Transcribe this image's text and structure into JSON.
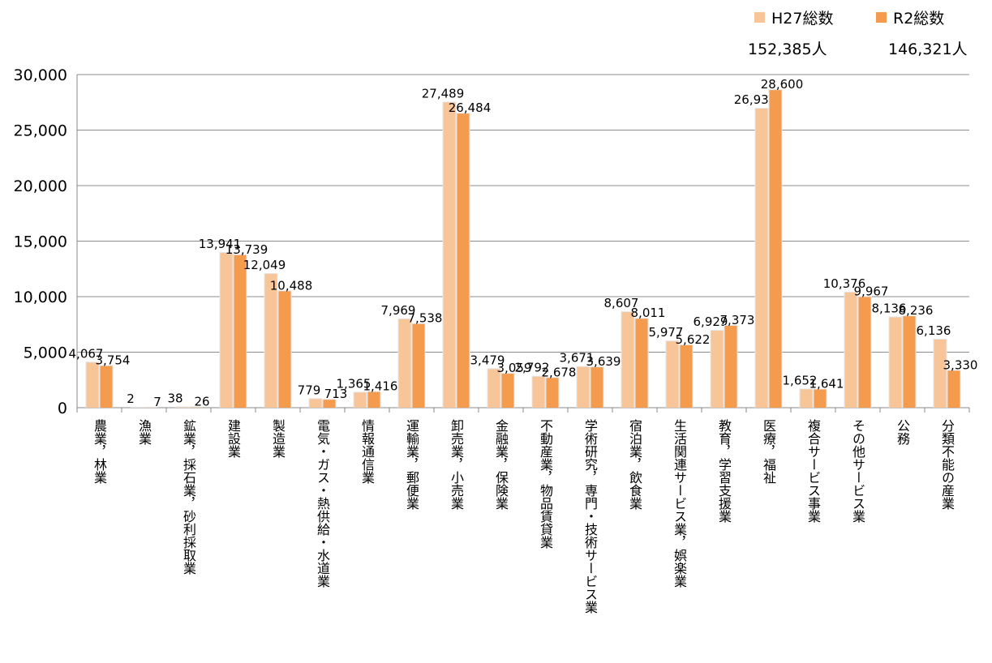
{
  "legend": {
    "items": [
      {
        "label": "H27総数",
        "total": "152,385人",
        "color": "#f8c598"
      },
      {
        "label": "R2総数",
        "total": "146,321人",
        "color": "#f59b4e"
      }
    ]
  },
  "chart_data": {
    "type": "bar",
    "title": "",
    "xlabel": "",
    "ylabel": "",
    "ylim": [
      0,
      30000
    ],
    "yticks": [
      0,
      5000,
      10000,
      15000,
      20000,
      25000,
      30000
    ],
    "ytick_labels": [
      "0",
      "5,000",
      "10,000",
      "15,000",
      "20,000",
      "25,000",
      "30,000"
    ],
    "grid": true,
    "legend_position": "top-right",
    "categories": [
      "農業，林業",
      "漁業",
      "鉱業，採石業，砂利採取業",
      "建設業",
      "製造業",
      "電気・ガス・熱供給・水道業",
      "情報通信業",
      "運輸業，郵便業",
      "卸売業，小売業",
      "金融業，保険業",
      "不動産業，物品賃貸業",
      "学術研究，専門・技術サービス業",
      "宿泊業，飲食業",
      "生活関連サービス業，娯楽業",
      "教育，学習支援業",
      "医療，福祉",
      "複合サービス事業",
      "その他サービス業",
      "公務",
      "分類不能の産業"
    ],
    "series": [
      {
        "name": "H27総数",
        "color": "#f8c598",
        "values": [
          4067,
          2,
          38,
          13941,
          12049,
          779,
          1365,
          7969,
          27489,
          3479,
          2792,
          3671,
          8607,
          5977,
          6929,
          26931,
          1652,
          10376,
          8136,
          6136
        ],
        "labels": [
          "4,067",
          "2",
          "38",
          "13,941",
          "12,049",
          "779",
          "1,365",
          "7,969",
          "27,489",
          "3,479",
          "2,792",
          "3,671",
          "8,607",
          "5,977",
          "6,929",
          "26,931",
          "1,652",
          "10,376",
          "8,136",
          "6,136"
        ]
      },
      {
        "name": "R2総数",
        "color": "#f59b4e",
        "values": [
          3754,
          7,
          26,
          13739,
          10488,
          713,
          1416,
          7538,
          26484,
          3059,
          2678,
          3639,
          8011,
          5622,
          7373,
          28600,
          1641,
          9967,
          8236,
          3330
        ],
        "labels": [
          "3,754",
          "7",
          "26",
          "13,739",
          "10,488",
          "713",
          "1,416",
          "7,538",
          "26,484",
          "3,059",
          "2,678",
          "3,639",
          "8,011",
          "5,622",
          "7,373",
          "28,600",
          "1,641",
          "9,967",
          "8,236",
          "3,330"
        ]
      }
    ]
  }
}
